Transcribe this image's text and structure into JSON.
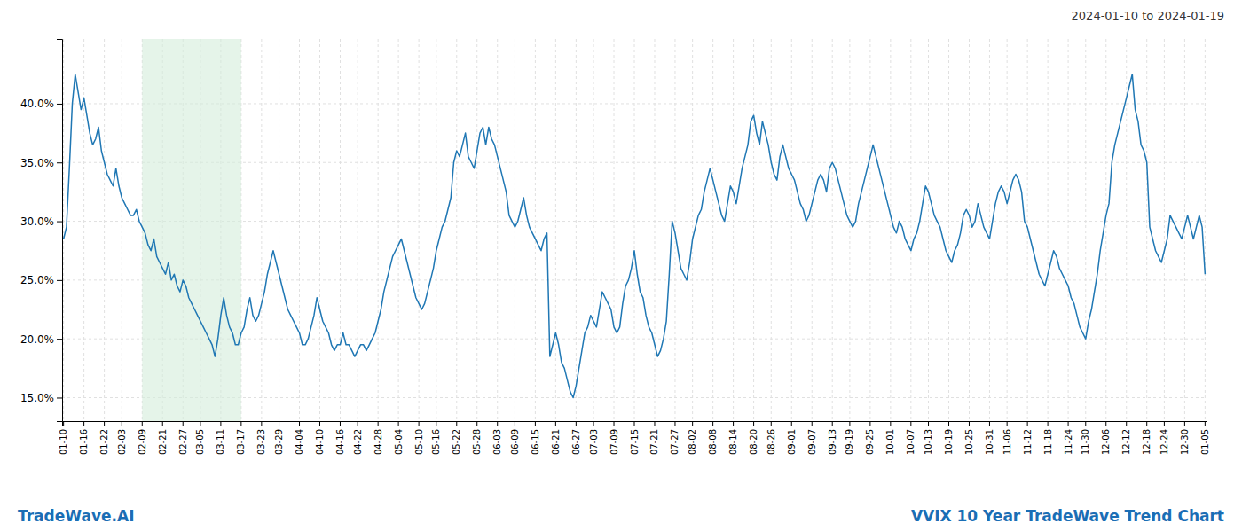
{
  "chart_data": {
    "type": "line",
    "title": "VVIX 10 Year TradeWave Trend Chart",
    "subtitle": "2024-01-10 to 2024-01-19",
    "annotations": [
      "TradeWave.AI"
    ],
    "color": "#1f77b4",
    "grid": true,
    "highlight": {
      "from": "02-09",
      "to": "03-17",
      "color": "#d4edda"
    },
    "ylim": [
      13.0,
      45.5
    ],
    "yticks": [
      {
        "value": 15.0,
        "label": "15.0%"
      },
      {
        "value": 20.0,
        "label": "20.0%"
      },
      {
        "value": 25.0,
        "label": "25.0%"
      },
      {
        "value": 30.0,
        "label": "30.0%"
      },
      {
        "value": 35.0,
        "label": "35.0%"
      },
      {
        "value": 40.0,
        "label": "40.0%"
      }
    ],
    "categories": [
      "01-10",
      null,
      null,
      null,
      null,
      null,
      null,
      "01-16",
      null,
      null,
      null,
      null,
      null,
      null,
      "01-22",
      null,
      null,
      null,
      null,
      null,
      "02-03",
      null,
      null,
      null,
      null,
      null,
      null,
      "02-09",
      null,
      null,
      null,
      null,
      null,
      null,
      "02-21",
      null,
      null,
      null,
      null,
      null,
      null,
      "02-27",
      null,
      null,
      null,
      null,
      null,
      "03-05",
      null,
      null,
      null,
      null,
      null,
      null,
      "03-11",
      null,
      null,
      null,
      null,
      null,
      null,
      "03-17",
      null,
      null,
      null,
      null,
      null,
      null,
      "03-23",
      null,
      null,
      null,
      null,
      null,
      "03-29",
      null,
      null,
      null,
      null,
      null,
      null,
      "04-04",
      null,
      null,
      null,
      null,
      null,
      null,
      "04-10",
      null,
      null,
      null,
      null,
      null,
      null,
      "04-16",
      null,
      null,
      null,
      null,
      null,
      "04-22",
      null,
      null,
      null,
      null,
      null,
      null,
      "04-28",
      null,
      null,
      null,
      null,
      null,
      null,
      "05-04",
      null,
      null,
      null,
      null,
      null,
      null,
      "05-10",
      null,
      null,
      null,
      null,
      null,
      "05-16",
      null,
      null,
      null,
      null,
      null,
      null,
      "05-22",
      null,
      null,
      null,
      null,
      null,
      null,
      "05-28",
      null,
      null,
      null,
      null,
      null,
      null,
      "06-03",
      null,
      null,
      null,
      null,
      null,
      "06-09",
      null,
      null,
      null,
      null,
      null,
      null,
      "06-15",
      null,
      null,
      null,
      null,
      null,
      null,
      "06-21",
      null,
      null,
      null,
      null,
      null,
      null,
      "06-27",
      null,
      null,
      null,
      null,
      null,
      "07-03",
      null,
      null,
      null,
      null,
      null,
      null,
      "07-09",
      null,
      null,
      null,
      null,
      null,
      null,
      "07-15",
      null,
      null,
      null,
      null,
      null,
      null,
      "07-21",
      null,
      null,
      null,
      null,
      null,
      null,
      "07-27",
      null,
      null,
      null,
      null,
      null,
      "08-02",
      null,
      null,
      null,
      null,
      null,
      null,
      "08-08",
      null,
      null,
      null,
      null,
      null,
      null,
      "08-14",
      null,
      null,
      null,
      null,
      null,
      null,
      "08-20",
      null,
      null,
      null,
      null,
      null,
      "08-26",
      null,
      null,
      null,
      null,
      null,
      null,
      "09-01",
      null,
      null,
      null,
      null,
      null,
      null,
      "09-07",
      null,
      null,
      null,
      null,
      null,
      null,
      "09-13",
      null,
      null,
      null,
      null,
      null,
      "09-19",
      null,
      null,
      null,
      null,
      null,
      null,
      "09-25",
      null,
      null,
      null,
      null,
      null,
      null,
      "10-01",
      null,
      null,
      null,
      null,
      null,
      null,
      "10-07",
      null,
      null,
      null,
      null,
      null,
      "10-13",
      null,
      null,
      null,
      null,
      null,
      null,
      "10-19",
      null,
      null,
      null,
      null,
      null,
      null,
      "10-25",
      null,
      null,
      null,
      null,
      null,
      null,
      "10-31",
      null,
      null,
      null,
      null,
      null,
      "11-06",
      null,
      null,
      null,
      null,
      null,
      null,
      "11-12",
      null,
      null,
      null,
      null,
      null,
      null,
      "11-18",
      null,
      null,
      null,
      null,
      null,
      null,
      "11-24",
      null,
      null,
      null,
      null,
      null,
      "11-30",
      null,
      null,
      null,
      null,
      null,
      null,
      "12-06",
      null,
      null,
      null,
      null,
      null,
      null,
      "12-12",
      null,
      null,
      null,
      null,
      null,
      null,
      "12-18",
      null,
      null,
      null,
      null,
      null,
      "12-24",
      null,
      null,
      null,
      null,
      null,
      null,
      "12-30",
      null,
      null,
      null,
      null,
      null,
      null,
      "01-05"
    ],
    "values": [
      28.5,
      29.5,
      34.5,
      40.0,
      42.5,
      41.0,
      39.5,
      40.5,
      39.0,
      37.5,
      36.5,
      37.0,
      38.0,
      36.0,
      35.0,
      34.0,
      33.5,
      33.0,
      34.5,
      33.0,
      32.0,
      31.5,
      31.0,
      30.5,
      30.5,
      31.0,
      30.0,
      29.5,
      29.0,
      28.0,
      27.5,
      28.5,
      27.0,
      26.5,
      26.0,
      25.5,
      26.5,
      25.0,
      25.5,
      24.5,
      24.0,
      25.0,
      24.5,
      23.5,
      23.0,
      22.5,
      22.0,
      21.5,
      21.0,
      20.5,
      20.0,
      19.5,
      18.5,
      20.0,
      22.0,
      23.5,
      22.0,
      21.0,
      20.5,
      19.5,
      19.5,
      20.5,
      21.0,
      22.5,
      23.5,
      22.0,
      21.5,
      22.0,
      23.0,
      24.0,
      25.5,
      26.5,
      27.5,
      26.5,
      25.5,
      24.5,
      23.5,
      22.5,
      22.0,
      21.5,
      21.0,
      20.5,
      19.5,
      19.5,
      20.0,
      21.0,
      22.0,
      23.5,
      22.5,
      21.5,
      21.0,
      20.5,
      19.5,
      19.0,
      19.5,
      19.5,
      20.5,
      19.5,
      19.5,
      19.0,
      18.5,
      19.0,
      19.5,
      19.5,
      19.0,
      19.5,
      20.0,
      20.5,
      21.5,
      22.5,
      24.0,
      25.0,
      26.0,
      27.0,
      27.5,
      28.0,
      28.5,
      27.5,
      26.5,
      25.5,
      24.5,
      23.5,
      23.0,
      22.5,
      23.0,
      24.0,
      25.0,
      26.0,
      27.5,
      28.5,
      29.5,
      30.0,
      31.0,
      32.0,
      35.0,
      36.0,
      35.5,
      36.5,
      37.5,
      35.5,
      35.0,
      34.5,
      36.0,
      37.5,
      38.0,
      36.5,
      38.0,
      37.0,
      36.5,
      35.5,
      34.5,
      33.5,
      32.5,
      30.5,
      30.0,
      29.5,
      30.0,
      31.0,
      32.0,
      30.5,
      29.5,
      29.0,
      28.5,
      28.0,
      27.5,
      28.5,
      29.0,
      18.5,
      19.5,
      20.5,
      19.5,
      18.0,
      17.5,
      16.5,
      15.5,
      15.0,
      16.0,
      17.5,
      19.0,
      20.5,
      21.0,
      22.0,
      21.5,
      21.0,
      22.5,
      24.0,
      23.5,
      23.0,
      22.5,
      21.0,
      20.5,
      21.0,
      23.0,
      24.5,
      25.0,
      26.0,
      27.5,
      25.5,
      24.0,
      23.5,
      22.0,
      21.0,
      20.5,
      19.5,
      18.5,
      19.0,
      20.0,
      21.5,
      25.5,
      30.0,
      29.0,
      27.5,
      26.0,
      25.5,
      25.0,
      26.5,
      28.5,
      29.5,
      30.5,
      31.0,
      32.5,
      33.5,
      34.5,
      33.5,
      32.5,
      31.5,
      30.5,
      30.0,
      31.5,
      33.0,
      32.5,
      31.5,
      33.0,
      34.5,
      35.5,
      36.5,
      38.5,
      39.0,
      37.5,
      36.5,
      38.5,
      37.5,
      36.5,
      35.0,
      34.0,
      33.5,
      35.5,
      36.5,
      35.5,
      34.5,
      34.0,
      33.5,
      32.5,
      31.5,
      31.0,
      30.0,
      30.5,
      31.5,
      32.5,
      33.5,
      34.0,
      33.5,
      32.5,
      34.5,
      35.0,
      34.5,
      33.5,
      32.5,
      31.5,
      30.5,
      30.0,
      29.5,
      30.0,
      31.5,
      32.5,
      33.5,
      34.5,
      35.5,
      36.5,
      35.5,
      34.5,
      33.5,
      32.5,
      31.5,
      30.5,
      29.5,
      29.0,
      30.0,
      29.5,
      28.5,
      28.0,
      27.5,
      28.5,
      29.0,
      30.0,
      31.5,
      33.0,
      32.5,
      31.5,
      30.5,
      30.0,
      29.5,
      28.5,
      27.5,
      27.0,
      26.5,
      27.5,
      28.0,
      29.0,
      30.5,
      31.0,
      30.5,
      29.5,
      30.0,
      31.5,
      30.5,
      29.5,
      29.0,
      28.5,
      30.0,
      31.5,
      32.5,
      33.0,
      32.5,
      31.5,
      32.5,
      33.5,
      34.0,
      33.5,
      32.5,
      30.0,
      29.5,
      28.5,
      27.5,
      26.5,
      25.5,
      25.0,
      24.5,
      25.5,
      26.5,
      27.5,
      27.0,
      26.0,
      25.5,
      25.0,
      24.5,
      23.5,
      23.0,
      22.0,
      21.0,
      20.5,
      20.0,
      21.5,
      22.5,
      24.0,
      25.5,
      27.5,
      29.0,
      30.5,
      31.5,
      35.0,
      36.5,
      37.5,
      38.5,
      39.5,
      40.5,
      41.5,
      42.5,
      39.5,
      38.5,
      36.5,
      36.0,
      35.0,
      29.5,
      28.5,
      27.5,
      27.0,
      26.5,
      27.5,
      28.5,
      30.5,
      30.0,
      29.5,
      29.0,
      28.5,
      29.5,
      30.5,
      29.5,
      28.5,
      29.5,
      30.5,
      29.5,
      25.5
    ]
  }
}
